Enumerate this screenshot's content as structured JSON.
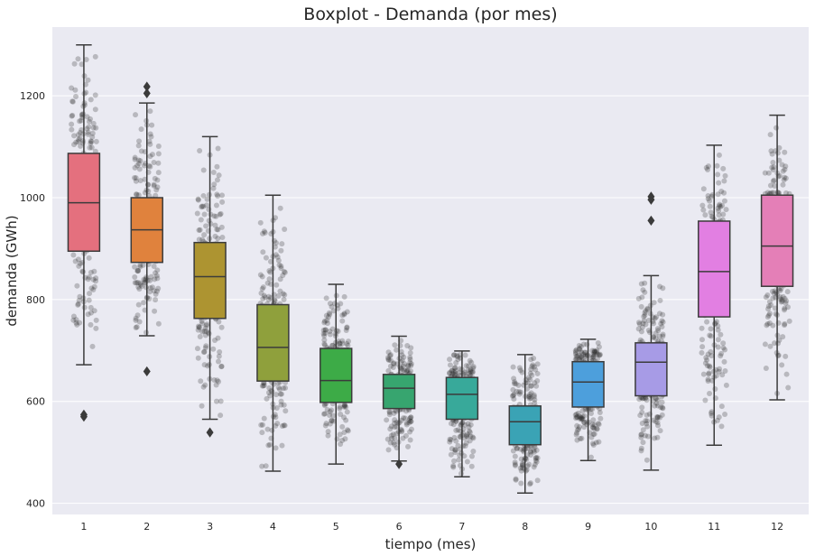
{
  "chart_data": {
    "type": "boxplot",
    "title": "Boxplot - Demanda (por mes)",
    "xlabel": "tiempo (mes)",
    "ylabel": "demanda (GWh)",
    "categories": [
      "1",
      "2",
      "3",
      "4",
      "5",
      "6",
      "7",
      "8",
      "9",
      "10",
      "11",
      "12"
    ],
    "ylim": [
      378,
      1335
    ],
    "yticks": [
      400,
      600,
      800,
      1000,
      1200
    ],
    "grid": true,
    "boxes": [
      {
        "category": "1",
        "whisker_low": 672,
        "q1": 895,
        "median": 990,
        "q3": 1087,
        "whisker_high": 1300,
        "outliers": [
          570,
          574
        ],
        "color": "#e4707e"
      },
      {
        "category": "2",
        "whisker_low": 729,
        "q1": 873,
        "median": 937,
        "q3": 1000,
        "whisker_high": 1186,
        "outliers": [
          659,
          1205,
          1218
        ],
        "color": "#e0823d"
      },
      {
        "category": "3",
        "whisker_low": 565,
        "q1": 763,
        "median": 845,
        "q3": 912,
        "whisker_high": 1120,
        "outliers": [
          539
        ],
        "color": "#ad9431"
      },
      {
        "category": "4",
        "whisker_low": 463,
        "q1": 640,
        "median": 706,
        "q3": 790,
        "whisker_high": 1005,
        "outliers": [],
        "color": "#8fa03c"
      },
      {
        "category": "5",
        "whisker_low": 477,
        "q1": 598,
        "median": 641,
        "q3": 704,
        "whisker_high": 830,
        "outliers": [],
        "color": "#3dab47"
      },
      {
        "category": "6",
        "whisker_low": 483,
        "q1": 586,
        "median": 626,
        "q3": 653,
        "whisker_high": 728,
        "outliers": [
          477
        ],
        "color": "#37a56f"
      },
      {
        "category": "7",
        "whisker_low": 452,
        "q1": 565,
        "median": 614,
        "q3": 647,
        "whisker_high": 699,
        "outliers": [],
        "color": "#38a99a"
      },
      {
        "category": "8",
        "whisker_low": 420,
        "q1": 515,
        "median": 560,
        "q3": 591,
        "whisker_high": 692,
        "outliers": [],
        "color": "#3aa3b5"
      },
      {
        "category": "9",
        "whisker_low": 484,
        "q1": 589,
        "median": 638,
        "q3": 678,
        "whisker_high": 722,
        "outliers": [],
        "color": "#4d9fdc"
      },
      {
        "category": "10",
        "whisker_low": 465,
        "q1": 611,
        "median": 677,
        "q3": 715,
        "whisker_high": 847,
        "outliers": [
          955,
          996,
          1002
        ],
        "color": "#a79be6"
      },
      {
        "category": "11",
        "whisker_low": 514,
        "q1": 766,
        "median": 855,
        "q3": 954,
        "whisker_high": 1103,
        "outliers": [],
        "color": "#e27fe2"
      },
      {
        "category": "12",
        "whisker_low": 603,
        "q1": 826,
        "median": 905,
        "q3": 1005,
        "whisker_high": 1162,
        "outliers": [],
        "color": "#e47fb7"
      }
    ],
    "jitter_points": {
      "color": "#222222",
      "opacity": 0.25,
      "per_category": 210
    },
    "colors": {
      "background": "#eaeaf2",
      "grid": "#ffffff",
      "box_edge": "#3b3b3b"
    }
  }
}
